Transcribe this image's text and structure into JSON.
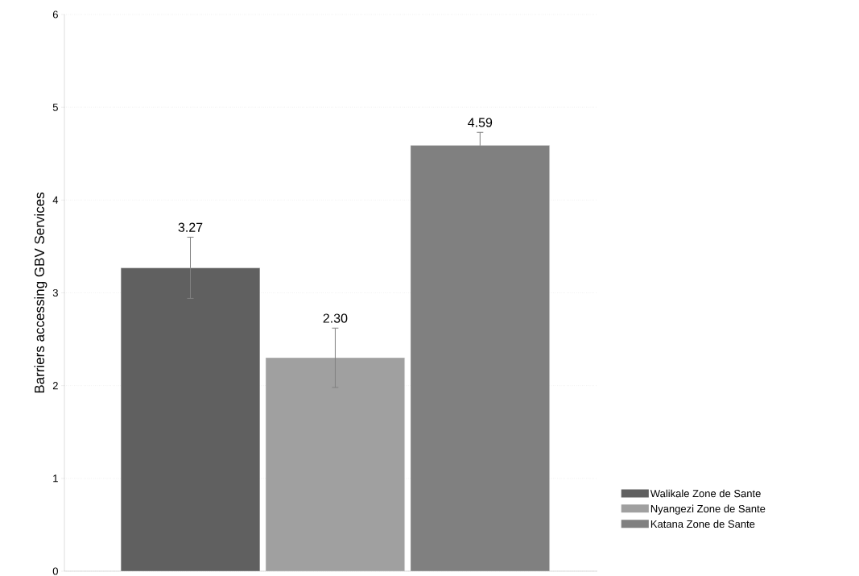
{
  "chart_data": {
    "type": "bar",
    "ylabel": "Barriers accessing GBV Services",
    "categories": [
      null
    ],
    "series": [
      {
        "name": "Walikale Zone de Sante",
        "color": "#606060",
        "values": [
          3.27
        ],
        "errors": [
          0.33
        ],
        "value_labels": [
          "3.27"
        ]
      },
      {
        "name": "Nyangezi Zone de Sante",
        "color": "#a0a0a0",
        "values": [
          2.3
        ],
        "errors": [
          0.32
        ],
        "value_labels": [
          "2.30"
        ]
      },
      {
        "name": "Katana Zone de Sante",
        "color": "#808080",
        "values": [
          4.59
        ],
        "errors": [
          0.14
        ],
        "value_labels": [
          "4.59"
        ]
      }
    ],
    "ylim": [
      0,
      6
    ],
    "yticks": [
      0,
      1,
      2,
      3,
      4,
      5,
      6
    ],
    "grid": "y",
    "legend": "bottom right"
  }
}
